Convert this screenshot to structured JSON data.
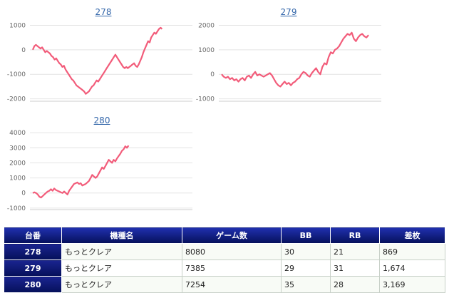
{
  "accent_color": "#f25c7a",
  "header_color": "#0a1670",
  "charts": [
    {
      "title": "278",
      "yticks": [
        "1000",
        "0",
        "-1000",
        "-2000"
      ],
      "ylim": [
        -2100,
        1100
      ],
      "values": [
        0,
        150,
        200,
        150,
        100,
        50,
        100,
        0,
        -100,
        -50,
        -100,
        -150,
        -250,
        -300,
        -400,
        -350,
        -450,
        -550,
        -600,
        -700,
        -650,
        -800,
        -900,
        -1000,
        -1100,
        -1200,
        -1250,
        -1350,
        -1450,
        -1500,
        -1550,
        -1600,
        -1650,
        -1700,
        -1800,
        -1750,
        -1700,
        -1600,
        -1500,
        -1450,
        -1350,
        -1250,
        -1300,
        -1200,
        -1100,
        -1000,
        -900,
        -800,
        -700,
        -600,
        -500,
        -400,
        -300,
        -200,
        -300,
        -400,
        -500,
        -600,
        -700,
        -750,
        -700,
        -750,
        -700,
        -650,
        -600,
        -550,
        -650,
        -700,
        -600,
        -450,
        -300,
        -100,
        50,
        200,
        350,
        300,
        500,
        600,
        700,
        650,
        750,
        850,
        900,
        850
      ]
    },
    {
      "title": "279",
      "yticks": [
        "2000",
        "1000",
        "0",
        "-1000"
      ],
      "ylim": [
        -1100,
        2100
      ],
      "values": [
        0,
        -100,
        -150,
        -100,
        -200,
        -150,
        -250,
        -200,
        -300,
        -200,
        -150,
        -250,
        -100,
        -50,
        -150,
        0,
        100,
        -50,
        0,
        -50,
        -100,
        -50,
        0,
        50,
        -50,
        -200,
        -350,
        -450,
        -500,
        -400,
        -300,
        -400,
        -350,
        -450,
        -350,
        -300,
        -200,
        -150,
        0,
        100,
        50,
        -50,
        -100,
        50,
        150,
        250,
        100,
        0,
        300,
        450,
        400,
        700,
        900,
        850,
        1000,
        1050,
        1150,
        1300,
        1450,
        1550,
        1650,
        1600,
        1700,
        1450,
        1350,
        1500,
        1600,
        1650,
        1550,
        1500,
        1600
      ]
    },
    {
      "title": "280",
      "yticks": [
        "4000",
        "3000",
        "2000",
        "1000",
        "0",
        "-1000"
      ],
      "ylim": [
        -1100,
        4100
      ],
      "values": [
        0,
        50,
        0,
        -100,
        -250,
        -300,
        -200,
        -100,
        0,
        100,
        150,
        250,
        150,
        300,
        200,
        150,
        100,
        50,
        0,
        100,
        0,
        -100,
        150,
        300,
        450,
        600,
        650,
        700,
        600,
        650,
        500,
        550,
        600,
        700,
        800,
        1000,
        1200,
        1100,
        1000,
        1100,
        1300,
        1500,
        1700,
        1600,
        1800,
        2000,
        2200,
        2100,
        2000,
        2200,
        2100,
        2300,
        2450,
        2600,
        2800,
        2900,
        3100,
        3000,
        3150
      ]
    }
  ],
  "table": {
    "headers": [
      "台番",
      "機種名",
      "ゲーム数",
      "BB",
      "RB",
      "差枚"
    ],
    "rows": [
      [
        "278",
        "もっとクレア",
        "8080",
        "30",
        "21",
        "869"
      ],
      [
        "279",
        "もっとクレア",
        "7385",
        "29",
        "31",
        "1,674"
      ],
      [
        "280",
        "もっとクレア",
        "7254",
        "35",
        "28",
        "3,169"
      ]
    ]
  },
  "chart_data": [
    {
      "type": "line",
      "title": "278",
      "ylim": [
        -2100,
        1100
      ],
      "yticks": [
        1000,
        0,
        -1000,
        -2000
      ],
      "grid": true,
      "values": [
        0,
        150,
        200,
        150,
        100,
        50,
        100,
        0,
        -100,
        -50,
        -100,
        -150,
        -250,
        -300,
        -400,
        -350,
        -450,
        -550,
        -600,
        -700,
        -650,
        -800,
        -900,
        -1000,
        -1100,
        -1200,
        -1250,
        -1350,
        -1450,
        -1500,
        -1550,
        -1600,
        -1650,
        -1700,
        -1800,
        -1750,
        -1700,
        -1600,
        -1500,
        -1450,
        -1350,
        -1250,
        -1300,
        -1200,
        -1100,
        -1000,
        -900,
        -800,
        -700,
        -600,
        -500,
        -400,
        -300,
        -200,
        -300,
        -400,
        -500,
        -600,
        -700,
        -750,
        -700,
        -750,
        -700,
        -650,
        -600,
        -550,
        -650,
        -700,
        -600,
        -450,
        -300,
        -100,
        50,
        200,
        350,
        300,
        500,
        600,
        700,
        650,
        750,
        850,
        900,
        850
      ]
    },
    {
      "type": "line",
      "title": "279",
      "ylim": [
        -1100,
        2100
      ],
      "yticks": [
        2000,
        1000,
        0,
        -1000
      ],
      "grid": true,
      "values": [
        0,
        -100,
        -150,
        -100,
        -200,
        -150,
        -250,
        -200,
        -300,
        -200,
        -150,
        -250,
        -100,
        -50,
        -150,
        0,
        100,
        -50,
        0,
        -50,
        -100,
        -50,
        0,
        50,
        -50,
        -200,
        -350,
        -450,
        -500,
        -400,
        -300,
        -400,
        -350,
        -450,
        -350,
        -300,
        -200,
        -150,
        0,
        100,
        50,
        -50,
        -100,
        50,
        150,
        250,
        100,
        0,
        300,
        450,
        400,
        700,
        900,
        850,
        1000,
        1050,
        1150,
        1300,
        1450,
        1550,
        1650,
        1600,
        1700,
        1450,
        1350,
        1500,
        1600,
        1650,
        1550,
        1500,
        1600
      ]
    },
    {
      "type": "line",
      "title": "280",
      "ylim": [
        -1100,
        4100
      ],
      "yticks": [
        4000,
        3000,
        2000,
        1000,
        0,
        -1000
      ],
      "grid": true,
      "values": [
        0,
        50,
        0,
        -100,
        -250,
        -300,
        -200,
        -100,
        0,
        100,
        150,
        250,
        150,
        300,
        200,
        150,
        100,
        50,
        0,
        100,
        0,
        -100,
        150,
        300,
        450,
        600,
        650,
        700,
        600,
        650,
        500,
        550,
        600,
        700,
        800,
        1000,
        1200,
        1100,
        1000,
        1100,
        1300,
        1500,
        1700,
        1600,
        1800,
        2000,
        2200,
        2100,
        2000,
        2200,
        2100,
        2300,
        2450,
        2600,
        2800,
        2900,
        3100,
        3000,
        3150
      ]
    }
  ]
}
